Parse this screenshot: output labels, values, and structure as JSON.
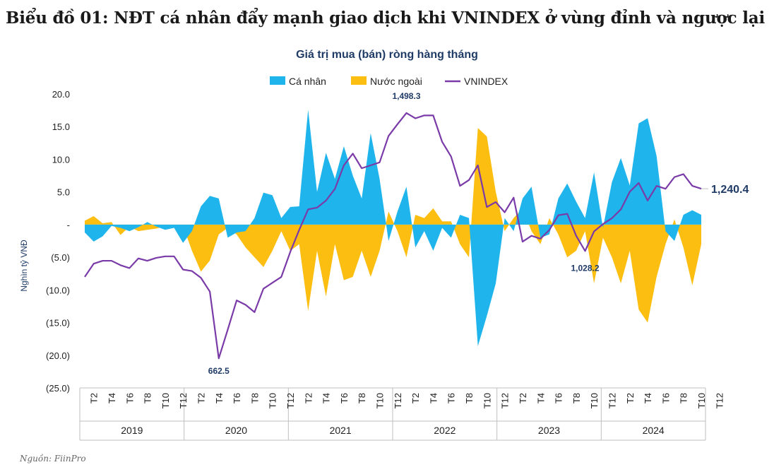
{
  "page": {
    "heading": "Biểu đồ 01: NĐT cá nhân đẩy mạnh giao dịch khi VNINDEX ở vùng đỉnh và ngược lại",
    "source": "Nguồn: FiinPro"
  },
  "colors": {
    "individual": "#1FB5EC",
    "foreign": "#FDBE12",
    "vnindex": "#7A3BA8",
    "text_dark": "#1F3B66"
  },
  "chart_data": {
    "type": "area",
    "title": "Giá trị mua (bán) ròng hàng tháng",
    "ylabel": "Nghìn tỷ VNĐ",
    "ylim": [
      -25,
      20
    ],
    "y_ticks": [
      20,
      15,
      10,
      5,
      0,
      -5,
      -10,
      -15,
      -20,
      -25
    ],
    "y_tick_labels": [
      "20.0",
      "15.0",
      "10.0",
      "5.0",
      "-",
      "(5.0)",
      "(10.0)",
      "(15.0)",
      "(20.0)",
      "(25.0)"
    ],
    "legend": [
      "Cá nhân",
      "Nước ngoài",
      "VNINDEX"
    ],
    "legend_position": "top-center",
    "x_month_labels": [
      "T2",
      "T4",
      "T6",
      "T8",
      "T10",
      "T12"
    ],
    "years": [
      "2019",
      "2020",
      "2021",
      "2022",
      "2023",
      "2024"
    ],
    "months_per_year": 12,
    "series": [
      {
        "name": "Cá nhân",
        "values": [
          -1.2,
          -2.6,
          -1.8,
          -0.2,
          -0.5,
          -1.0,
          -0.4,
          0.4,
          -0.3,
          -0.8,
          -0.5,
          -2.8,
          -1.0,
          2.8,
          4.4,
          4.0,
          -2.0,
          -1.2,
          -1.0,
          1.0,
          4.9,
          4.5,
          1.0,
          2.7,
          2.8,
          17.6,
          5.0,
          11.0,
          7.0,
          12.0,
          7.5,
          4.0,
          14.0,
          7.0,
          -2.5,
          2.0,
          5.8,
          -3.5,
          -1.0,
          -4.0,
          -0.5,
          -2.0,
          1.5,
          1.0,
          -18.6,
          -14.0,
          -9.0,
          1.0,
          -1.0,
          4.0,
          5.8,
          -2.0,
          -1.5,
          4.0,
          6.3,
          3.5,
          1.0,
          8.0,
          -0.5,
          6.5,
          10.2,
          6.0,
          15.5,
          16.3,
          10.5,
          -1.0,
          -2.5,
          1.5,
          2.2,
          1.5
        ]
      },
      {
        "name": "Nước ngoài",
        "values": [
          0.6,
          1.3,
          0.2,
          0.4,
          -1.6,
          -0.3,
          -1.0,
          -0.8,
          -0.6,
          -0.3,
          -0.4,
          -0.2,
          -4.0,
          -7.2,
          -5.5,
          -1.5,
          -0.5,
          -1.5,
          -3.5,
          -5.0,
          -6.5,
          -4.0,
          -1.0,
          -4.0,
          -3.0,
          -13.2,
          -4.0,
          -11.0,
          -3.0,
          -8.5,
          -8.0,
          -4.0,
          -8.0,
          -4.0,
          2.0,
          -1.0,
          -5.0,
          1.5,
          1.0,
          2.5,
          0.5,
          0.5,
          -3.0,
          -5.0,
          14.8,
          13.5,
          5.0,
          -1.0,
          1.0,
          2.5,
          -1.0,
          -3.0,
          1.0,
          -1.5,
          -5.0,
          -4.0,
          -1.0,
          -9.0,
          -2.0,
          -5.0,
          -9.0,
          -4.0,
          -13.0,
          -15.0,
          -8.0,
          -3.0,
          0.8,
          -3.5,
          -9.3,
          -3.0
        ]
      },
      {
        "name": "VNINDEX",
        "values": [
          940,
          985,
          995,
          995,
          980,
          970,
          1003,
          995,
          1005,
          1010,
          1010,
          965,
          960,
          937,
          890,
          662.5,
          760,
          860,
          845,
          820,
          900,
          920,
          940,
          1025,
          1100,
          1170,
          1176,
          1200,
          1240,
          1320,
          1360,
          1310,
          1320,
          1330,
          1420,
          1460,
          1498.3,
          1480,
          1490,
          1490,
          1400,
          1350,
          1250,
          1270,
          1320,
          1178,
          1195,
          1160,
          1210,
          1060,
          1080,
          1070,
          1100,
          1150,
          1155,
          1080,
          1028.2,
          1095,
          1120,
          1140,
          1170,
          1230,
          1260,
          1200,
          1250,
          1240,
          1280,
          1290,
          1250,
          1240.4
        ]
      }
    ],
    "annotations": [
      "662.5",
      "1,498.3",
      "1,028.2",
      "1,240.4"
    ],
    "vnindex_range": [
      562,
      1563
    ]
  }
}
